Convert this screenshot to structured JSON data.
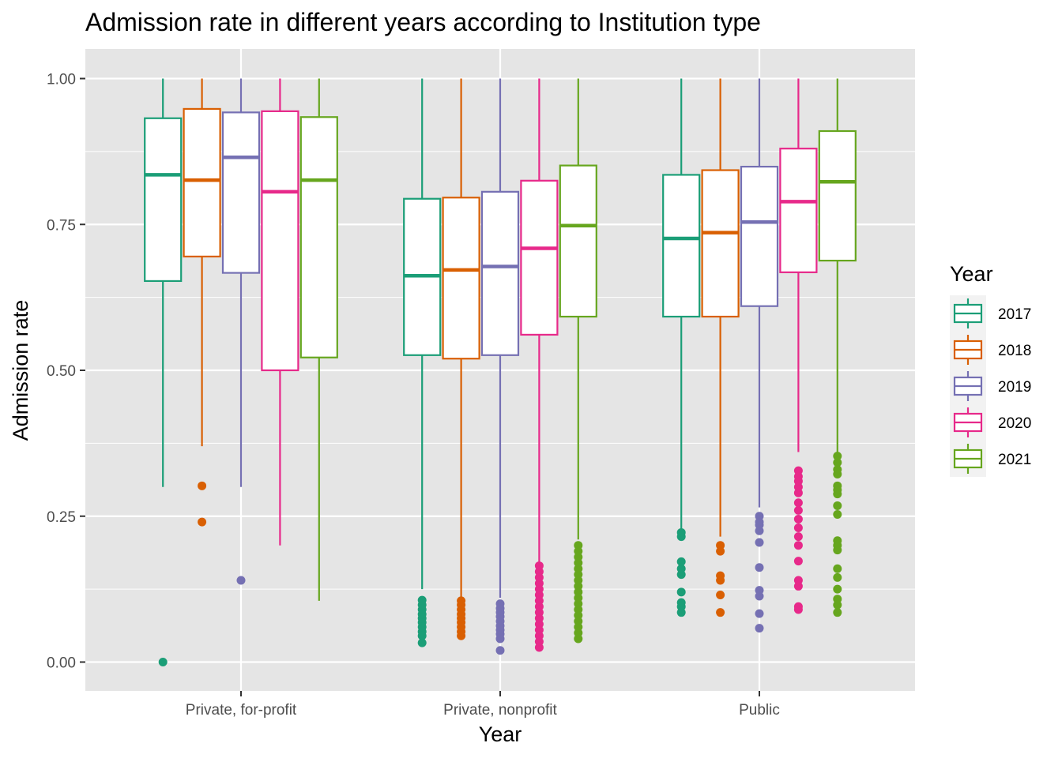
{
  "chart_data": {
    "type": "boxplot",
    "title": "Admission rate in different years according to Institution type",
    "xlabel": "Year",
    "ylabel": "Admission rate",
    "ylim": [
      -0.05,
      1.05
    ],
    "yticks": [
      "0.00",
      "0.25",
      "0.50",
      "0.75",
      "1.00"
    ],
    "categories": [
      "Private, for-profit",
      "Private, nonprofit",
      "Public"
    ],
    "grid": true,
    "background": "#e5e5e5",
    "legend": {
      "title": "Year",
      "position": "right",
      "items": [
        "2017",
        "2018",
        "2019",
        "2020",
        "2021"
      ]
    },
    "series": [
      {
        "name": "2017",
        "color": "#1b9e77",
        "boxes": [
          {
            "lower": 0.3,
            "q1": 0.653,
            "median": 0.835,
            "q3": 0.932,
            "upper": 1.0,
            "outliers": [
              0.0
            ]
          },
          {
            "lower": 0.125,
            "q1": 0.526,
            "median": 0.662,
            "q3": 0.794,
            "upper": 1.0,
            "outliers": [
              0.033,
              0.045,
              0.052,
              0.06,
              0.068,
              0.075,
              0.082,
              0.09,
              0.098,
              0.106
            ]
          },
          {
            "lower": 0.225,
            "q1": 0.592,
            "median": 0.726,
            "q3": 0.835,
            "upper": 1.0,
            "outliers": [
              0.085,
              0.095,
              0.102,
              0.12,
              0.15,
              0.16,
              0.172,
              0.215,
              0.222
            ]
          }
        ]
      },
      {
        "name": "2018",
        "color": "#d95f02",
        "boxes": [
          {
            "lower": 0.37,
            "q1": 0.695,
            "median": 0.826,
            "q3": 0.948,
            "upper": 1.0,
            "outliers": [
              0.24,
              0.302
            ]
          },
          {
            "lower": 0.11,
            "q1": 0.52,
            "median": 0.672,
            "q3": 0.796,
            "upper": 1.0,
            "outliers": [
              0.045,
              0.052,
              0.06,
              0.068,
              0.075,
              0.082,
              0.09,
              0.098,
              0.105
            ]
          },
          {
            "lower": 0.215,
            "q1": 0.592,
            "median": 0.736,
            "q3": 0.843,
            "upper": 1.0,
            "outliers": [
              0.085,
              0.115,
              0.14,
              0.148,
              0.19,
              0.2
            ]
          }
        ]
      },
      {
        "name": "2019",
        "color": "#7570b3",
        "boxes": [
          {
            "lower": 0.3,
            "q1": 0.667,
            "median": 0.865,
            "q3": 0.942,
            "upper": 1.0,
            "outliers": [
              0.14
            ]
          },
          {
            "lower": 0.11,
            "q1": 0.526,
            "median": 0.678,
            "q3": 0.806,
            "upper": 1.0,
            "outliers": [
              0.02,
              0.04,
              0.048,
              0.055,
              0.062,
              0.07,
              0.078,
              0.085,
              0.092,
              0.1
            ]
          },
          {
            "lower": 0.265,
            "q1": 0.61,
            "median": 0.754,
            "q3": 0.849,
            "upper": 1.0,
            "outliers": [
              0.058,
              0.083,
              0.113,
              0.123,
              0.162,
              0.205,
              0.225,
              0.235,
              0.24,
              0.25
            ]
          }
        ]
      },
      {
        "name": "2020",
        "color": "#e7298a",
        "boxes": [
          {
            "lower": 0.2,
            "q1": 0.5,
            "median": 0.806,
            "q3": 0.944,
            "upper": 1.0,
            "outliers": []
          },
          {
            "lower": 0.17,
            "q1": 0.561,
            "median": 0.709,
            "q3": 0.825,
            "upper": 1.0,
            "outliers": [
              0.025,
              0.035,
              0.045,
              0.055,
              0.065,
              0.075,
              0.085,
              0.095,
              0.105,
              0.115,
              0.125,
              0.135,
              0.145,
              0.155,
              0.165
            ]
          },
          {
            "lower": 0.36,
            "q1": 0.668,
            "median": 0.789,
            "q3": 0.88,
            "upper": 1.0,
            "outliers": [
              0.09,
              0.095,
              0.13,
              0.14,
              0.173,
              0.2,
              0.215,
              0.23,
              0.245,
              0.26,
              0.273,
              0.29,
              0.3,
              0.31,
              0.318,
              0.328
            ]
          }
        ]
      },
      {
        "name": "2021",
        "color": "#66a61e",
        "boxes": [
          {
            "lower": 0.105,
            "q1": 0.522,
            "median": 0.826,
            "q3": 0.934,
            "upper": 1.0,
            "outliers": []
          },
          {
            "lower": 0.21,
            "q1": 0.592,
            "median": 0.748,
            "q3": 0.851,
            "upper": 1.0,
            "outliers": [
              0.04,
              0.05,
              0.06,
              0.07,
              0.08,
              0.09,
              0.1,
              0.11,
              0.12,
              0.13,
              0.14,
              0.15,
              0.16,
              0.17,
              0.18,
              0.19,
              0.2
            ]
          },
          {
            "lower": 0.36,
            "q1": 0.688,
            "median": 0.823,
            "q3": 0.91,
            "upper": 1.0,
            "outliers": [
              0.085,
              0.098,
              0.108,
              0.125,
              0.145,
              0.16,
              0.192,
              0.2,
              0.208,
              0.253,
              0.268,
              0.288,
              0.295,
              0.302,
              0.322,
              0.33,
              0.342,
              0.353
            ]
          }
        ]
      }
    ]
  }
}
